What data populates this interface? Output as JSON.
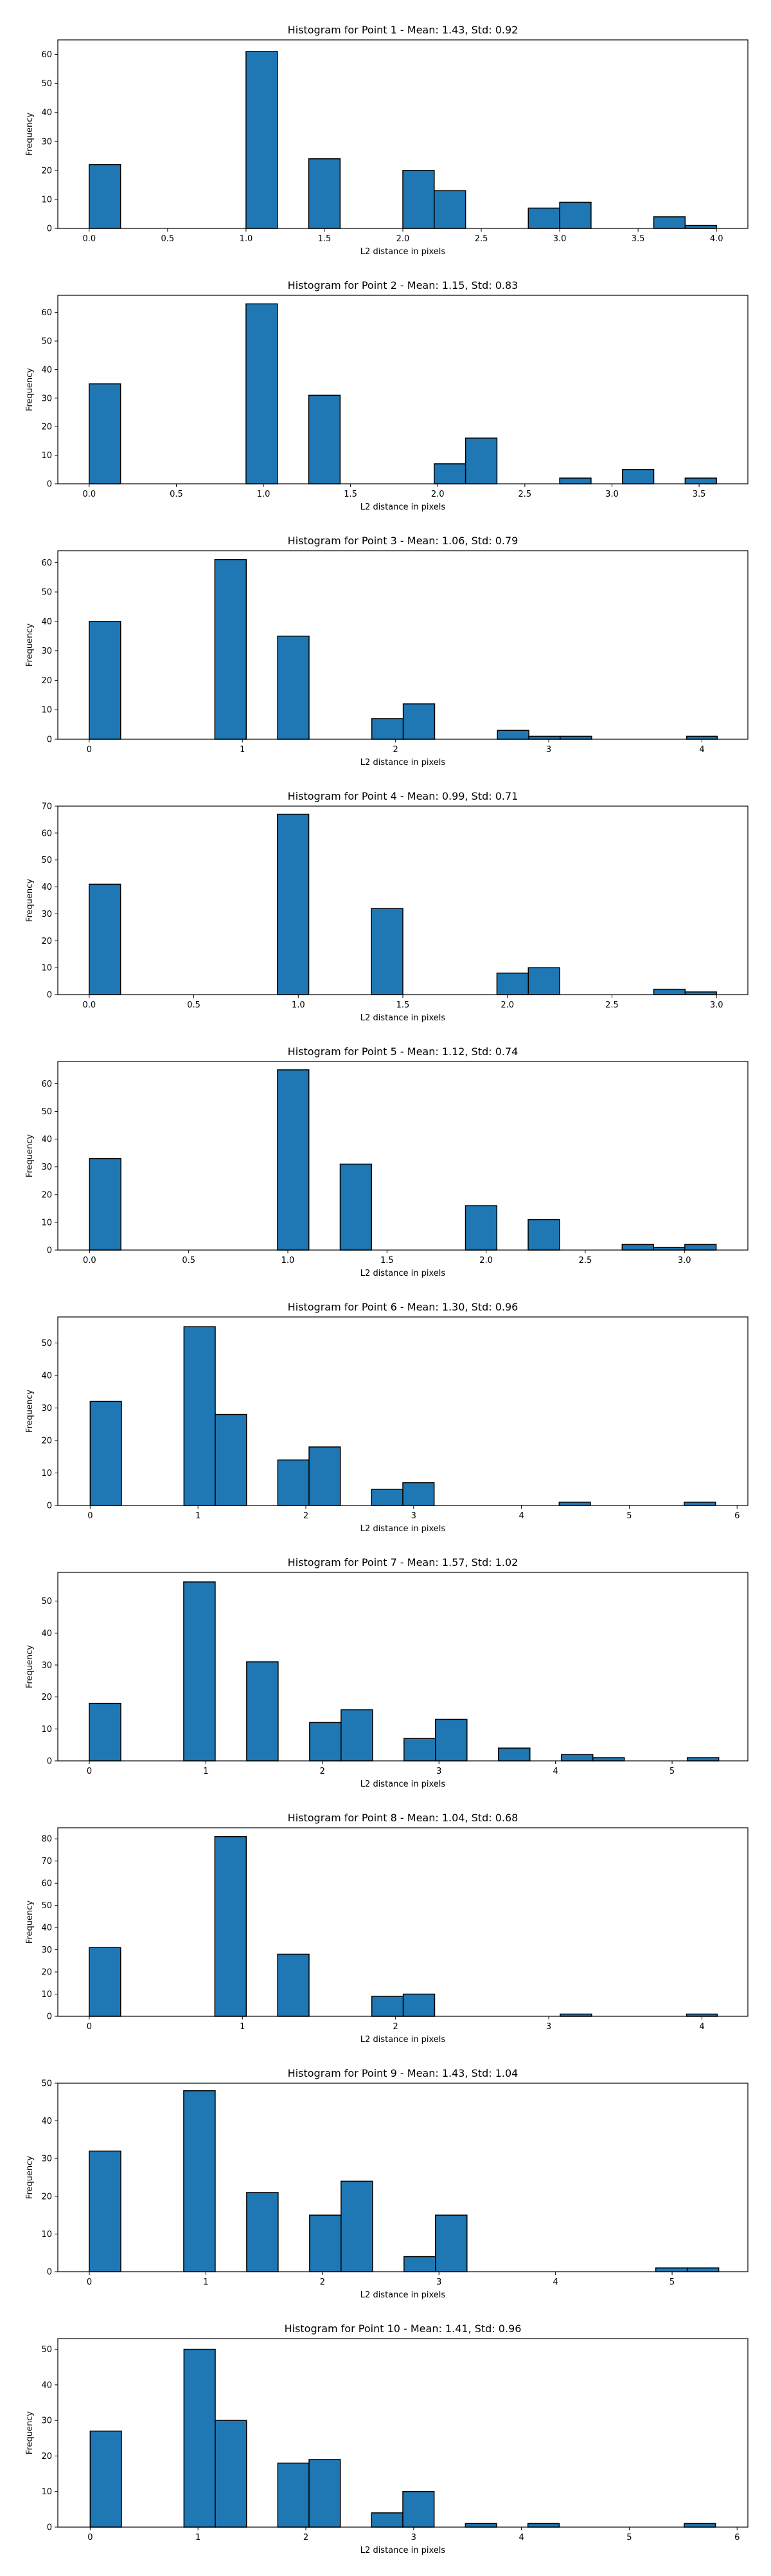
{
  "chart_data": [
    {
      "type": "bar",
      "title": "Histogram for Point 1 - Mean: 1.43, Std: 0.92",
      "xlabel": "L2 distance in pixels",
      "ylabel": "Frequency",
      "xlim": [
        -0.2,
        4.2
      ],
      "ylim": [
        0,
        65
      ],
      "xticks": [
        0.0,
        0.5,
        1.0,
        1.5,
        2.0,
        2.5,
        3.0,
        3.5,
        4.0
      ],
      "xtick_labels": [
        "0.0",
        "0.5",
        "1.0",
        "1.5",
        "2.0",
        "2.5",
        "3.0",
        "3.5",
        "4.0"
      ],
      "yticks": [
        0,
        10,
        20,
        30,
        40,
        50,
        60
      ],
      "bins": [
        {
          "x0": 0.0,
          "x1": 0.2,
          "count": 22
        },
        {
          "x0": 1.0,
          "x1": 1.2,
          "count": 61
        },
        {
          "x0": 1.4,
          "x1": 1.6,
          "count": 24
        },
        {
          "x0": 2.0,
          "x1": 2.2,
          "count": 20
        },
        {
          "x0": 2.2,
          "x1": 2.4,
          "count": 13
        },
        {
          "x0": 2.8,
          "x1": 3.0,
          "count": 7
        },
        {
          "x0": 3.0,
          "x1": 3.2,
          "count": 9
        },
        {
          "x0": 3.6,
          "x1": 3.8,
          "count": 4
        },
        {
          "x0": 3.8,
          "x1": 4.0,
          "count": 1
        }
      ]
    },
    {
      "type": "bar",
      "title": "Histogram for Point 2 - Mean: 1.15, Std: 0.83",
      "xlabel": "L2 distance in pixels",
      "ylabel": "Frequency",
      "xlim": [
        -0.18,
        3.78
      ],
      "ylim": [
        0,
        66
      ],
      "xticks": [
        0.0,
        0.5,
        1.0,
        1.5,
        2.0,
        2.5,
        3.0,
        3.5
      ],
      "xtick_labels": [
        "0.0",
        "0.5",
        "1.0",
        "1.5",
        "2.0",
        "2.5",
        "3.0",
        "3.5"
      ],
      "yticks": [
        0,
        10,
        20,
        30,
        40,
        50,
        60
      ],
      "bins": [
        {
          "x0": 0.0,
          "x1": 0.18,
          "count": 35
        },
        {
          "x0": 0.9,
          "x1": 1.08,
          "count": 63
        },
        {
          "x0": 1.26,
          "x1": 1.44,
          "count": 31
        },
        {
          "x0": 1.98,
          "x1": 2.16,
          "count": 7
        },
        {
          "x0": 2.16,
          "x1": 2.34,
          "count": 16
        },
        {
          "x0": 2.7,
          "x1": 2.88,
          "count": 2
        },
        {
          "x0": 3.06,
          "x1": 3.24,
          "count": 5
        },
        {
          "x0": 3.42,
          "x1": 3.6,
          "count": 2
        }
      ]
    },
    {
      "type": "bar",
      "title": "Histogram for Point 3 - Mean: 1.06, Std: 0.79",
      "xlabel": "L2 distance in pixels",
      "ylabel": "Frequency",
      "xlim": [
        -0.205,
        4.3
      ],
      "ylim": [
        0,
        64
      ],
      "xticks": [
        0,
        1,
        2,
        3,
        4
      ],
      "xtick_labels": [
        "0",
        "1",
        "2",
        "3",
        "4"
      ],
      "yticks": [
        0,
        10,
        20,
        30,
        40,
        50,
        60
      ],
      "bins": [
        {
          "x0": 0.0,
          "x1": 0.205,
          "count": 40
        },
        {
          "x0": 0.82,
          "x1": 1.025,
          "count": 61
        },
        {
          "x0": 1.23,
          "x1": 1.435,
          "count": 35
        },
        {
          "x0": 1.845,
          "x1": 2.05,
          "count": 7
        },
        {
          "x0": 2.05,
          "x1": 2.255,
          "count": 12
        },
        {
          "x0": 2.665,
          "x1": 2.87,
          "count": 3
        },
        {
          "x0": 2.87,
          "x1": 3.075,
          "count": 1
        },
        {
          "x0": 3.075,
          "x1": 3.28,
          "count": 1
        },
        {
          "x0": 3.9,
          "x1": 4.1,
          "count": 1
        }
      ]
    },
    {
      "type": "bar",
      "title": "Histogram for Point 4 - Mean: 0.99, Std: 0.71",
      "xlabel": "L2 distance in pixels",
      "ylabel": "Frequency",
      "xlim": [
        -0.15,
        3.15
      ],
      "ylim": [
        0,
        70
      ],
      "xticks": [
        0.0,
        0.5,
        1.0,
        1.5,
        2.0,
        2.5,
        3.0
      ],
      "xtick_labels": [
        "0.0",
        "0.5",
        "1.0",
        "1.5",
        "2.0",
        "2.5",
        "3.0"
      ],
      "yticks": [
        0,
        10,
        20,
        30,
        40,
        50,
        60,
        70
      ],
      "bins": [
        {
          "x0": 0.0,
          "x1": 0.15,
          "count": 41
        },
        {
          "x0": 0.9,
          "x1": 1.05,
          "count": 67
        },
        {
          "x0": 1.35,
          "x1": 1.5,
          "count": 32
        },
        {
          "x0": 1.95,
          "x1": 2.1,
          "count": 8
        },
        {
          "x0": 2.1,
          "x1": 2.25,
          "count": 10
        },
        {
          "x0": 2.7,
          "x1": 2.85,
          "count": 2
        },
        {
          "x0": 2.85,
          "x1": 3.0,
          "count": 1
        }
      ]
    },
    {
      "type": "bar",
      "title": "Histogram for Point 5 - Mean: 1.12, Std: 0.74",
      "xlabel": "L2 distance in pixels",
      "ylabel": "Frequency",
      "xlim": [
        -0.16,
        3.32
      ],
      "ylim": [
        0,
        68
      ],
      "xticks": [
        0.0,
        0.5,
        1.0,
        1.5,
        2.0,
        2.5,
        3.0
      ],
      "xtick_labels": [
        "0.0",
        "0.5",
        "1.0",
        "1.5",
        "2.0",
        "2.5",
        "3.0"
      ],
      "yticks": [
        0,
        10,
        20,
        30,
        40,
        50,
        60
      ],
      "bins": [
        {
          "x0": 0.0,
          "x1": 0.158,
          "count": 33
        },
        {
          "x0": 0.948,
          "x1": 1.106,
          "count": 65
        },
        {
          "x0": 1.264,
          "x1": 1.422,
          "count": 31
        },
        {
          "x0": 1.896,
          "x1": 2.054,
          "count": 16
        },
        {
          "x0": 2.212,
          "x1": 2.37,
          "count": 11
        },
        {
          "x0": 2.686,
          "x1": 2.844,
          "count": 2
        },
        {
          "x0": 2.844,
          "x1": 3.002,
          "count": 1
        },
        {
          "x0": 3.002,
          "x1": 3.16,
          "count": 2
        }
      ]
    },
    {
      "type": "bar",
      "title": "Histogram for Point 6 - Mean: 1.30, Std: 0.96",
      "xlabel": "L2 distance in pixels",
      "ylabel": "Frequency",
      "xlim": [
        -0.3,
        6.1
      ],
      "ylim": [
        0,
        58
      ],
      "xticks": [
        0,
        1,
        2,
        3,
        4,
        5,
        6
      ],
      "xtick_labels": [
        "0",
        "1",
        "2",
        "3",
        "4",
        "5",
        "6"
      ],
      "yticks": [
        0,
        10,
        20,
        30,
        40,
        50
      ],
      "bins": [
        {
          "x0": 0.0,
          "x1": 0.29,
          "count": 32
        },
        {
          "x0": 0.87,
          "x1": 1.16,
          "count": 55
        },
        {
          "x0": 1.16,
          "x1": 1.45,
          "count": 28
        },
        {
          "x0": 1.74,
          "x1": 2.03,
          "count": 14
        },
        {
          "x0": 2.03,
          "x1": 2.32,
          "count": 18
        },
        {
          "x0": 2.61,
          "x1": 2.9,
          "count": 5
        },
        {
          "x0": 2.9,
          "x1": 3.19,
          "count": 7
        },
        {
          "x0": 4.35,
          "x1": 4.64,
          "count": 1
        },
        {
          "x0": 5.51,
          "x1": 5.8,
          "count": 1
        }
      ]
    },
    {
      "type": "bar",
      "title": "Histogram for Point 7 - Mean: 1.57, Std: 1.02",
      "xlabel": "L2 distance in pixels",
      "ylabel": "Frequency",
      "xlim": [
        -0.27,
        5.65
      ],
      "ylim": [
        0,
        59
      ],
      "xticks": [
        0,
        1,
        2,
        3,
        4,
        5
      ],
      "xtick_labels": [
        "0",
        "1",
        "2",
        "3",
        "4",
        "5"
      ],
      "yticks": [
        0,
        10,
        20,
        30,
        40,
        50
      ],
      "bins": [
        {
          "x0": 0.0,
          "x1": 0.27,
          "count": 18
        },
        {
          "x0": 0.81,
          "x1": 1.08,
          "count": 56
        },
        {
          "x0": 1.35,
          "x1": 1.62,
          "count": 31
        },
        {
          "x0": 1.89,
          "x1": 2.16,
          "count": 12
        },
        {
          "x0": 2.16,
          "x1": 2.43,
          "count": 16
        },
        {
          "x0": 2.7,
          "x1": 2.97,
          "count": 7
        },
        {
          "x0": 2.97,
          "x1": 3.24,
          "count": 13
        },
        {
          "x0": 3.51,
          "x1": 3.78,
          "count": 4
        },
        {
          "x0": 4.05,
          "x1": 4.32,
          "count": 2
        },
        {
          "x0": 4.32,
          "x1": 4.59,
          "count": 1
        },
        {
          "x0": 5.13,
          "x1": 5.4,
          "count": 1
        }
      ]
    },
    {
      "type": "bar",
      "title": "Histogram for Point 8 - Mean: 1.04, Std: 0.68",
      "xlabel": "L2 distance in pixels",
      "ylabel": "Frequency",
      "xlim": [
        -0.205,
        4.3
      ],
      "ylim": [
        0,
        85
      ],
      "xticks": [
        0,
        1,
        2,
        3,
        4
      ],
      "xtick_labels": [
        "0",
        "1",
        "2",
        "3",
        "4"
      ],
      "yticks": [
        0,
        10,
        20,
        30,
        40,
        50,
        60,
        70,
        80
      ],
      "bins": [
        {
          "x0": 0.0,
          "x1": 0.205,
          "count": 31
        },
        {
          "x0": 0.82,
          "x1": 1.025,
          "count": 81
        },
        {
          "x0": 1.23,
          "x1": 1.435,
          "count": 28
        },
        {
          "x0": 1.845,
          "x1": 2.05,
          "count": 9
        },
        {
          "x0": 2.05,
          "x1": 2.255,
          "count": 10
        },
        {
          "x0": 3.075,
          "x1": 3.28,
          "count": 1
        },
        {
          "x0": 3.9,
          "x1": 4.1,
          "count": 1
        }
      ]
    },
    {
      "type": "bar",
      "title": "Histogram for Point 9 - Mean: 1.43, Std: 1.04",
      "xlabel": "L2 distance in pixels",
      "ylabel": "Frequency",
      "xlim": [
        -0.27,
        5.65
      ],
      "ylim": [
        0,
        50
      ],
      "xticks": [
        0,
        1,
        2,
        3,
        4,
        5
      ],
      "xtick_labels": [
        "0",
        "1",
        "2",
        "3",
        "4",
        "5"
      ],
      "yticks": [
        0,
        10,
        20,
        30,
        40,
        50
      ],
      "bins": [
        {
          "x0": 0.0,
          "x1": 0.27,
          "count": 32
        },
        {
          "x0": 0.81,
          "x1": 1.08,
          "count": 48
        },
        {
          "x0": 1.35,
          "x1": 1.62,
          "count": 21
        },
        {
          "x0": 1.89,
          "x1": 2.16,
          "count": 15
        },
        {
          "x0": 2.16,
          "x1": 2.43,
          "count": 24
        },
        {
          "x0": 2.7,
          "x1": 2.97,
          "count": 4
        },
        {
          "x0": 2.97,
          "x1": 3.24,
          "count": 15
        },
        {
          "x0": 4.86,
          "x1": 5.13,
          "count": 1
        },
        {
          "x0": 5.13,
          "x1": 5.4,
          "count": 1
        }
      ]
    },
    {
      "type": "bar",
      "title": "Histogram for Point 10 - Mean: 1.41, Std: 0.96",
      "xlabel": "L2 distance in pixels",
      "ylabel": "Frequency",
      "xlim": [
        -0.3,
        6.1
      ],
      "ylim": [
        0,
        53
      ],
      "xticks": [
        0,
        1,
        2,
        3,
        4,
        5,
        6
      ],
      "xtick_labels": [
        "0",
        "1",
        "2",
        "3",
        "4",
        "5",
        "6"
      ],
      "yticks": [
        0,
        10,
        20,
        30,
        40,
        50
      ],
      "bins": [
        {
          "x0": 0.0,
          "x1": 0.29,
          "count": 27
        },
        {
          "x0": 0.87,
          "x1": 1.16,
          "count": 50
        },
        {
          "x0": 1.16,
          "x1": 1.45,
          "count": 30
        },
        {
          "x0": 1.74,
          "x1": 2.03,
          "count": 18
        },
        {
          "x0": 2.03,
          "x1": 2.32,
          "count": 19
        },
        {
          "x0": 2.61,
          "x1": 2.9,
          "count": 4
        },
        {
          "x0": 2.9,
          "x1": 3.19,
          "count": 10
        },
        {
          "x0": 3.48,
          "x1": 3.77,
          "count": 1
        },
        {
          "x0": 4.06,
          "x1": 4.35,
          "count": 1
        },
        {
          "x0": 5.51,
          "x1": 5.8,
          "count": 1
        }
      ]
    }
  ],
  "colors": {
    "bar_fill": "#1f77b4",
    "bar_edge": "#000000",
    "axes": "#000000",
    "background": "#ffffff"
  }
}
